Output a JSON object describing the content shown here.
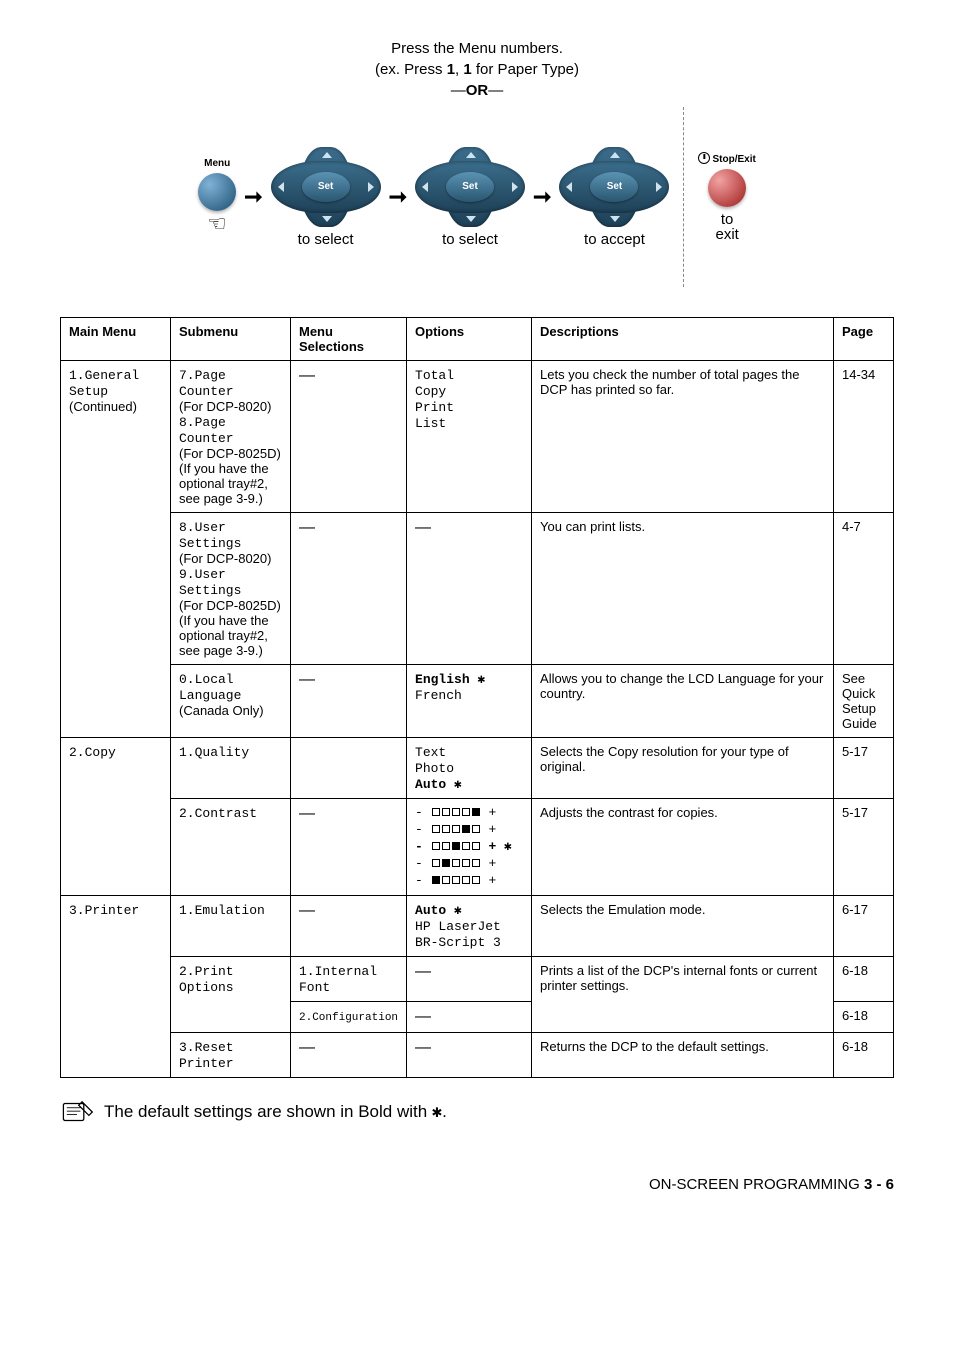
{
  "intro": {
    "line1": "Press the Menu numbers.",
    "line2_pre": "(ex. Press ",
    "b1": "1",
    "mid": ", ",
    "b2": "1",
    "line2_post": " for Paper Type)",
    "or_pre": "—",
    "or": "OR",
    "or_post": "—"
  },
  "nav": {
    "menu_label": "Menu",
    "set": "Set",
    "select": "to select",
    "accept": "to accept",
    "stop_label": "Stop/Exit",
    "exit1": "to",
    "exit2": "exit"
  },
  "headers": [
    "Main Menu",
    "Submenu",
    "Menu\nSelections",
    "Options",
    "Descriptions",
    "Page"
  ],
  "rows": [
    {
      "main": {
        "mono": "1.General\nSetup",
        "extra": "(Continued)",
        "rowspan": 3
      },
      "sub": {
        "lines": [
          {
            "m": "7.Page"
          },
          {
            "m": "Counter"
          },
          {
            "n": "(For DCP-8020)"
          },
          {
            "m": "8.Page"
          },
          {
            "m": "Counter"
          },
          {
            "n": "(For DCP-8025D)"
          },
          {
            "n": "(If you have the optional tray#2, see page 3-9.)"
          }
        ]
      },
      "sel": "—",
      "opt": {
        "mono": "Total\nCopy\nPrint\nList"
      },
      "desc": "Lets you check the number of total pages the DCP has printed so far.",
      "page": "14-34"
    },
    {
      "sub": {
        "lines": [
          {
            "m": "8.User"
          },
          {
            "m": "Settings"
          },
          {
            "n": "(For DCP-8020)"
          },
          {
            "m": "9.User"
          },
          {
            "m": "Settings"
          },
          {
            "n": "(For DCP-8025D)"
          },
          {
            "n": "(If you have the optional tray#2, see page 3-9.)"
          }
        ]
      },
      "sel": "—",
      "opt": {
        "dash": "—"
      },
      "desc": "You can print lists.",
      "page": "4-7"
    },
    {
      "sub": {
        "lines": [
          {
            "m": "0.Local"
          },
          {
            "m": "Language"
          },
          {
            "n": "(Canada Only)"
          }
        ]
      },
      "sel": "—",
      "opt": {
        "lang": true,
        "l1": "English",
        "l2": "French"
      },
      "desc": "Allows you to change the LCD Language for your country.",
      "page": "See Quick Setup Guide"
    },
    {
      "main": {
        "mono": "2.Copy",
        "rowspan": 2
      },
      "sub": {
        "lines": [
          {
            "m": "1.Quality"
          }
        ]
      },
      "sel": "",
      "opt": {
        "quality": true,
        "q1": "Text",
        "q2": "Photo",
        "q3": "Auto"
      },
      "desc": "Selects the Copy resolution for your type of original.",
      "page": "5-17"
    },
    {
      "sub": {
        "lines": [
          {
            "m": "2.Contrast"
          }
        ]
      },
      "sel": "—",
      "opt": {
        "contrast": true
      },
      "desc": "Adjusts the contrast for copies.",
      "page": "5-17"
    },
    {
      "main": {
        "mono": "3.Printer",
        "rowspan": 4
      },
      "sub": {
        "lines": [
          {
            "m": "1.Emulation"
          }
        ]
      },
      "sel": "—",
      "opt": {
        "emul": true,
        "e1": "Auto",
        "e2": "HP LaserJet",
        "e3": "BR-Script 3"
      },
      "desc": "Selects the Emulation mode.",
      "page": "6-17"
    },
    {
      "sub": {
        "lines": [
          {
            "m": "2.Print"
          },
          {
            "m": "Options"
          }
        ],
        "rowspan": 2
      },
      "sel_mono": "1.Internal\nFont",
      "opt": {
        "dash": "—"
      },
      "desc": "Prints a list of the DCP's internal fonts or current printer settings.",
      "desc_rowspan": 2,
      "page": "6-18"
    },
    {
      "sel_small_mono": "2.Configuration",
      "opt": {
        "dash": "—"
      },
      "page": "6-18"
    },
    {
      "sub": {
        "lines": [
          {
            "m": "3.Reset"
          },
          {
            "m": "Printer"
          }
        ]
      },
      "sel": "—",
      "opt": {
        "dash": "—"
      },
      "desc": "Returns the DCP to the default settings.",
      "page": "6-18"
    }
  ],
  "footnote": "The default settings are shown in Bold with ",
  "footer_text": "ON-SCREEN PROGRAMMING   ",
  "footer_page": "3 - 6"
}
